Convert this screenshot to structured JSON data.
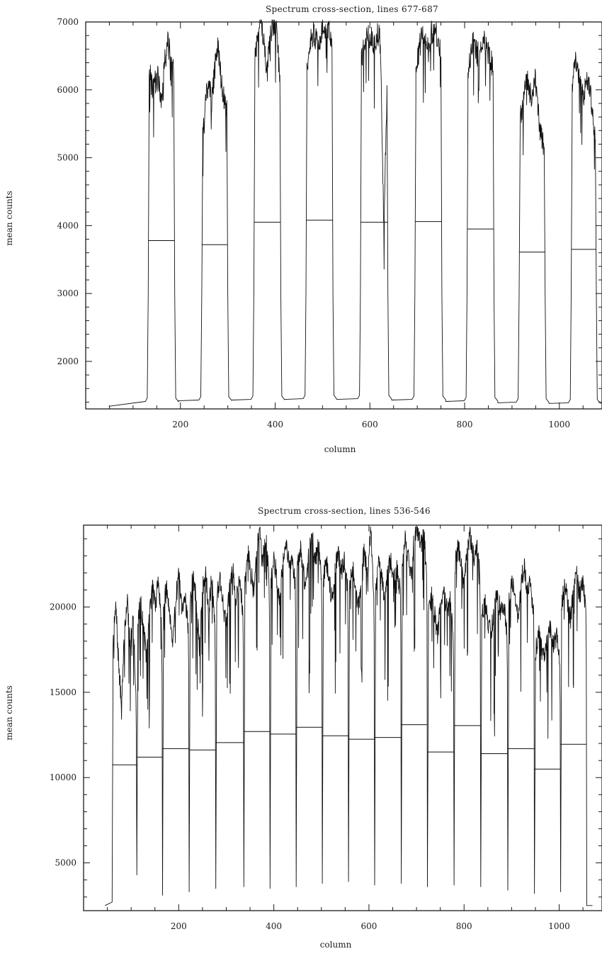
{
  "chart_data": [
    {
      "type": "line",
      "title": "Spectrum cross-section, lines 677-687",
      "xlabel": "column",
      "ylabel": "mean counts",
      "xlim": [
        0,
        1090
      ],
      "ylim": [
        1300,
        7000
      ],
      "xticks": [
        "200",
        "400",
        "600",
        "800",
        "1000"
      ],
      "yticks": [
        "2000",
        "3000",
        "4000",
        "5000",
        "6000",
        "7000"
      ],
      "grid": false,
      "baseline": 1340,
      "orders": [
        {
          "x": [
            132,
            188
          ],
          "flux": [
            6300,
            6000,
            6100,
            6200,
            5800,
            6400,
            6700,
            6500,
            6200
          ],
          "mean": 3780,
          "edge": 1400
        },
        {
          "x": [
            245,
            300
          ],
          "flux": [
            5400,
            5900,
            6100,
            5800,
            6300,
            6700,
            6200,
            5900,
            5700
          ],
          "mean": 3720,
          "edge": 1420
        },
        {
          "x": [
            355,
            412
          ],
          "flux": [
            6400,
            6900,
            7000,
            6600,
            6300,
            6800,
            7000,
            6900,
            6100
          ],
          "mean": 4050,
          "edge": 1430
        },
        {
          "x": [
            465,
            522
          ],
          "flux": [
            6300,
            6700,
            6850,
            6700,
            6600,
            6900,
            6800,
            6850,
            6700
          ],
          "mean": 4080,
          "edge": 1440
        },
        {
          "x": [
            580,
            638
          ],
          "flux": [
            6400,
            6700,
            6800,
            6800,
            6600,
            6850,
            6700,
            4000,
            5900
          ],
          "mean": 4050,
          "edge": 1440
        },
        {
          "x": [
            695,
            752
          ],
          "flux": [
            6200,
            6600,
            6800,
            6700,
            6600,
            6850,
            6900,
            6700,
            6500
          ],
          "mean": 4060,
          "edge": 1430
        },
        {
          "x": [
            805,
            862
          ],
          "flux": [
            6100,
            6600,
            6700,
            6500,
            6600,
            6750,
            6600,
            6500,
            6300
          ],
          "mean": 3950,
          "edge": 1410
        },
        {
          "x": [
            915,
            970
          ],
          "flux": [
            5500,
            5900,
            6200,
            6000,
            5900,
            6200,
            5700,
            5300,
            5100
          ],
          "mean": 3610,
          "edge": 1390
        },
        {
          "x": [
            1025,
            1078
          ],
          "flux": [
            6100,
            6400,
            6300,
            6100,
            5900,
            6200,
            6000,
            5700,
            5300
          ],
          "mean": 3650,
          "edge": 1380
        }
      ]
    },
    {
      "type": "line",
      "title": "Spectrum cross-section, lines 536-546",
      "xlabel": "column",
      "ylabel": "mean counts",
      "xlim": [
        0,
        1090
      ],
      "ylim": [
        2200,
        24800
      ],
      "xticks": [
        "200",
        "400",
        "600",
        "800",
        "1000"
      ],
      "yticks": [
        "5000",
        "10000",
        "15000",
        "20000"
      ],
      "grid": false,
      "orders": [
        {
          "x": [
            60,
            112
          ],
          "flux": [
            18000,
            20000,
            16500,
            14000,
            18500,
            20500,
            17500,
            19800,
            15000
          ],
          "mean": 10750,
          "left_dip": 2700,
          "right_dip": 4300
        },
        {
          "x": [
            112,
            166
          ],
          "flux": [
            19200,
            20200,
            18500,
            17000,
            19800,
            21200,
            20000,
            21800,
            18500
          ],
          "mean": 11200,
          "left_dip": 4300,
          "right_dip": 3100
        },
        {
          "x": [
            166,
            222
          ],
          "flux": [
            20300,
            21000,
            19800,
            18000,
            20600,
            21800,
            19500,
            20800,
            18800
          ],
          "mean": 11700,
          "left_dip": 3100,
          "right_dip": 3300
        },
        {
          "x": [
            222,
            278
          ],
          "flux": [
            20000,
            22000,
            20200,
            17500,
            21000,
            22300,
            19800,
            21600,
            19000
          ],
          "mean": 11620,
          "left_dip": 3300,
          "right_dip": 3500
        },
        {
          "x": [
            278,
            337
          ],
          "flux": [
            20700,
            21700,
            20000,
            19000,
            21200,
            22200,
            20500,
            21800,
            19600
          ],
          "mean": 12050,
          "left_dip": 3500,
          "right_dip": 3600
        },
        {
          "x": [
            337,
            392
          ],
          "flux": [
            21800,
            23200,
            22000,
            20800,
            23600,
            24300,
            22800,
            23900,
            21500
          ],
          "mean": 12700,
          "left_dip": 3600,
          "right_dip": 3500
        },
        {
          "x": [
            392,
            447
          ],
          "flux": [
            21500,
            22800,
            21600,
            20500,
            22900,
            23600,
            22400,
            23100,
            21200
          ],
          "mean": 12550,
          "left_dip": 3500,
          "right_dip": 3600
        },
        {
          "x": [
            447,
            502
          ],
          "flux": [
            22200,
            23500,
            22100,
            21000,
            23400,
            24000,
            22800,
            23600,
            21800
          ],
          "mean": 12950,
          "left_dip": 3600,
          "right_dip": 3800
        },
        {
          "x": [
            502,
            557
          ],
          "flux": [
            21600,
            22800,
            21400,
            20400,
            22500,
            23100,
            22000,
            22700,
            21000
          ],
          "mean": 12450,
          "left_dip": 3800,
          "right_dip": 3900
        },
        {
          "x": [
            557,
            612
          ],
          "flux": [
            21200,
            22400,
            21300,
            19800,
            22300,
            23300,
            21800,
            24600,
            20600
          ],
          "mean": 12250,
          "left_dip": 3900,
          "right_dip": 3700
        },
        {
          "x": [
            612,
            668
          ],
          "flux": [
            21400,
            22600,
            21500,
            20200,
            22400,
            22700,
            21600,
            22300,
            20800
          ],
          "mean": 12350,
          "left_dip": 3700,
          "right_dip": 3800
        },
        {
          "x": [
            668,
            723
          ],
          "flux": [
            22600,
            24000,
            22800,
            21600,
            24300,
            24800,
            23300,
            24500,
            22200
          ],
          "mean": 13100,
          "left_dip": 3800,
          "right_dip": 3600
        },
        {
          "x": [
            723,
            779
          ],
          "flux": [
            19400,
            20600,
            19600,
            18400,
            20300,
            20900,
            19800,
            20400,
            18600
          ],
          "mean": 11500,
          "left_dip": 3600,
          "right_dip": 3700
        },
        {
          "x": [
            779,
            835
          ],
          "flux": [
            22400,
            23600,
            22400,
            21200,
            23600,
            24200,
            22900,
            23700,
            21800
          ],
          "mean": 13050,
          "left_dip": 3700,
          "right_dip": 3600
        },
        {
          "x": [
            835,
            892
          ],
          "flux": [
            19300,
            20400,
            19200,
            18300,
            20200,
            20900,
            19600,
            20300,
            18700
          ],
          "mean": 11400,
          "left_dip": 3600,
          "right_dip": 3400
        },
        {
          "x": [
            892,
            948
          ],
          "flux": [
            20200,
            21600,
            20400,
            19300,
            21500,
            22300,
            20800,
            21700,
            19600
          ],
          "mean": 11700,
          "left_dip": 3400,
          "right_dip": 3200
        },
        {
          "x": [
            948,
            1003
          ],
          "flux": [
            17400,
            18400,
            17600,
            16800,
            18300,
            18700,
            17700,
            18200,
            16900
          ],
          "mean": 10500,
          "left_dip": 3200,
          "right_dip": 3300
        },
        {
          "x": [
            1003,
            1058
          ],
          "flux": [
            20000,
            21400,
            20300,
            19300,
            21200,
            21900,
            20600,
            21500,
            19800
          ],
          "mean": 11950,
          "left_dip": 3300,
          "right_dip": 2500
        }
      ]
    }
  ]
}
